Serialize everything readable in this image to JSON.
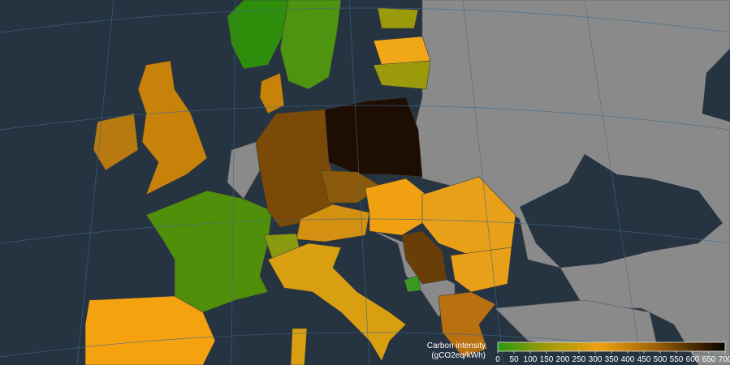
{
  "legend": {
    "title": [
      "Carbon intensity",
      "(gCO2eq/kWh)"
    ],
    "ticks": [
      0,
      50,
      100,
      150,
      200,
      250,
      300,
      350,
      400,
      450,
      500,
      550,
      600,
      650,
      700
    ]
  }
}
